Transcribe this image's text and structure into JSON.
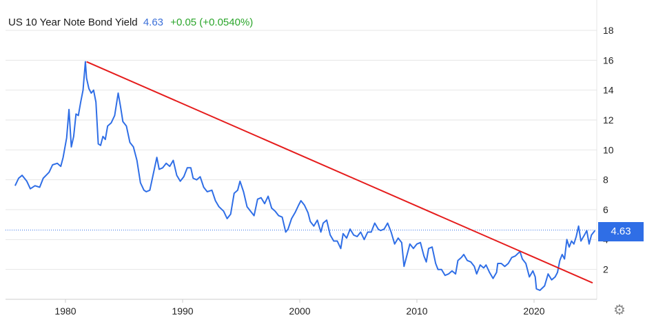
{
  "header": {
    "title": "US 10 Year Note Bond Yield",
    "price": "4.63",
    "change": "+0.05 (+0.0540%)"
  },
  "price_tag": "4.63",
  "settings_icon": "gear-icon",
  "colors": {
    "series": "#2f6ee6",
    "trendline": "#e51c1c",
    "change_positive": "#2aa52a",
    "grid": "#e6e6e6"
  },
  "chart_data": {
    "type": "line",
    "title": "US 10 Year Note Bond Yield",
    "xlabel": "",
    "ylabel": "",
    "xlim": [
      1975.7,
      2025.3
    ],
    "ylim": [
      0,
      20
    ],
    "x_ticks": [
      "1980",
      "1990",
      "2000",
      "2010",
      "2020"
    ],
    "y_ticks": [
      "2",
      "4",
      "6",
      "8",
      "10",
      "12",
      "14",
      "16",
      "18"
    ],
    "grid": "horizontal",
    "series": [
      {
        "points": [
          [
            1975.7,
            7.6
          ],
          [
            1976.0,
            8.1
          ],
          [
            1976.3,
            8.3
          ],
          [
            1976.7,
            7.9
          ],
          [
            1977.0,
            7.4
          ],
          [
            1977.4,
            7.6
          ],
          [
            1977.8,
            7.5
          ],
          [
            1978.1,
            8.1
          ],
          [
            1978.6,
            8.5
          ],
          [
            1978.9,
            9.0
          ],
          [
            1979.3,
            9.1
          ],
          [
            1979.6,
            8.9
          ],
          [
            1979.8,
            9.5
          ],
          [
            1980.1,
            10.8
          ],
          [
            1980.3,
            12.7
          ],
          [
            1980.5,
            10.2
          ],
          [
            1980.7,
            10.9
          ],
          [
            1980.9,
            12.4
          ],
          [
            1981.1,
            12.3
          ],
          [
            1981.3,
            13.2
          ],
          [
            1981.5,
            14.0
          ],
          [
            1981.7,
            15.9
          ],
          [
            1981.8,
            14.8
          ],
          [
            1982.0,
            14.1
          ],
          [
            1982.2,
            13.8
          ],
          [
            1982.4,
            14.0
          ],
          [
            1982.6,
            13.2
          ],
          [
            1982.8,
            10.4
          ],
          [
            1983.0,
            10.3
          ],
          [
            1983.2,
            10.9
          ],
          [
            1983.4,
            10.7
          ],
          [
            1983.6,
            11.6
          ],
          [
            1983.9,
            11.8
          ],
          [
            1984.2,
            12.3
          ],
          [
            1984.5,
            13.8
          ],
          [
            1984.7,
            12.9
          ],
          [
            1984.9,
            11.9
          ],
          [
            1985.2,
            11.6
          ],
          [
            1985.5,
            10.5
          ],
          [
            1985.8,
            10.2
          ],
          [
            1986.1,
            9.3
          ],
          [
            1986.4,
            7.8
          ],
          [
            1986.7,
            7.3
          ],
          [
            1986.9,
            7.2
          ],
          [
            1987.2,
            7.3
          ],
          [
            1987.5,
            8.4
          ],
          [
            1987.8,
            9.5
          ],
          [
            1988.0,
            8.7
          ],
          [
            1988.3,
            8.8
          ],
          [
            1988.6,
            9.1
          ],
          [
            1988.9,
            8.9
          ],
          [
            1989.2,
            9.3
          ],
          [
            1989.5,
            8.3
          ],
          [
            1989.8,
            7.9
          ],
          [
            1990.1,
            8.2
          ],
          [
            1990.4,
            8.8
          ],
          [
            1990.7,
            8.8
          ],
          [
            1990.9,
            8.1
          ],
          [
            1991.2,
            8.0
          ],
          [
            1991.5,
            8.2
          ],
          [
            1991.8,
            7.5
          ],
          [
            1992.1,
            7.2
          ],
          [
            1992.5,
            7.3
          ],
          [
            1992.8,
            6.6
          ],
          [
            1993.1,
            6.2
          ],
          [
            1993.5,
            5.9
          ],
          [
            1993.8,
            5.4
          ],
          [
            1994.1,
            5.7
          ],
          [
            1994.4,
            7.1
          ],
          [
            1994.7,
            7.3
          ],
          [
            1994.9,
            7.9
          ],
          [
            1995.2,
            7.2
          ],
          [
            1995.5,
            6.2
          ],
          [
            1995.8,
            5.9
          ],
          [
            1996.1,
            5.6
          ],
          [
            1996.4,
            6.7
          ],
          [
            1996.7,
            6.8
          ],
          [
            1997.0,
            6.4
          ],
          [
            1997.3,
            6.9
          ],
          [
            1997.6,
            6.1
          ],
          [
            1997.9,
            5.9
          ],
          [
            1998.2,
            5.6
          ],
          [
            1998.5,
            5.5
          ],
          [
            1998.8,
            4.5
          ],
          [
            1999.0,
            4.7
          ],
          [
            1999.3,
            5.4
          ],
          [
            1999.6,
            5.8
          ],
          [
            1999.9,
            6.3
          ],
          [
            2000.1,
            6.6
          ],
          [
            2000.4,
            6.3
          ],
          [
            2000.7,
            5.8
          ],
          [
            2000.9,
            5.2
          ],
          [
            2001.2,
            4.9
          ],
          [
            2001.5,
            5.3
          ],
          [
            2001.8,
            4.5
          ],
          [
            2002.0,
            5.1
          ],
          [
            2002.3,
            5.3
          ],
          [
            2002.6,
            4.3
          ],
          [
            2002.9,
            3.9
          ],
          [
            2003.2,
            3.9
          ],
          [
            2003.5,
            3.4
          ],
          [
            2003.7,
            4.4
          ],
          [
            2004.0,
            4.1
          ],
          [
            2004.3,
            4.7
          ],
          [
            2004.6,
            4.3
          ],
          [
            2004.9,
            4.2
          ],
          [
            2005.2,
            4.5
          ],
          [
            2005.5,
            4.0
          ],
          [
            2005.8,
            4.5
          ],
          [
            2006.1,
            4.5
          ],
          [
            2006.4,
            5.1
          ],
          [
            2006.7,
            4.7
          ],
          [
            2006.9,
            4.6
          ],
          [
            2007.2,
            4.7
          ],
          [
            2007.5,
            5.1
          ],
          [
            2007.8,
            4.5
          ],
          [
            2008.1,
            3.7
          ],
          [
            2008.4,
            4.1
          ],
          [
            2008.7,
            3.8
          ],
          [
            2008.9,
            2.2
          ],
          [
            2009.1,
            2.8
          ],
          [
            2009.4,
            3.7
          ],
          [
            2009.7,
            3.4
          ],
          [
            2010.0,
            3.7
          ],
          [
            2010.3,
            3.8
          ],
          [
            2010.6,
            2.9
          ],
          [
            2010.8,
            2.5
          ],
          [
            2011.0,
            3.4
          ],
          [
            2011.3,
            3.5
          ],
          [
            2011.6,
            2.4
          ],
          [
            2011.8,
            2.0
          ],
          [
            2012.1,
            2.0
          ],
          [
            2012.4,
            1.6
          ],
          [
            2012.7,
            1.7
          ],
          [
            2013.0,
            1.9
          ],
          [
            2013.3,
            1.7
          ],
          [
            2013.5,
            2.6
          ],
          [
            2013.8,
            2.8
          ],
          [
            2014.0,
            3.0
          ],
          [
            2014.3,
            2.6
          ],
          [
            2014.6,
            2.5
          ],
          [
            2014.9,
            2.2
          ],
          [
            2015.1,
            1.7
          ],
          [
            2015.4,
            2.3
          ],
          [
            2015.7,
            2.1
          ],
          [
            2015.9,
            2.3
          ],
          [
            2016.2,
            1.8
          ],
          [
            2016.5,
            1.4
          ],
          [
            2016.8,
            1.8
          ],
          [
            2016.9,
            2.4
          ],
          [
            2017.2,
            2.4
          ],
          [
            2017.5,
            2.2
          ],
          [
            2017.8,
            2.4
          ],
          [
            2018.1,
            2.8
          ],
          [
            2018.4,
            2.9
          ],
          [
            2018.8,
            3.2
          ],
          [
            2019.0,
            2.7
          ],
          [
            2019.3,
            2.4
          ],
          [
            2019.6,
            1.5
          ],
          [
            2019.9,
            1.9
          ],
          [
            2020.1,
            1.5
          ],
          [
            2020.2,
            0.7
          ],
          [
            2020.5,
            0.6
          ],
          [
            2020.9,
            0.9
          ],
          [
            2021.2,
            1.7
          ],
          [
            2021.5,
            1.3
          ],
          [
            2021.8,
            1.5
          ],
          [
            2022.0,
            1.8
          ],
          [
            2022.2,
            2.6
          ],
          [
            2022.4,
            3.0
          ],
          [
            2022.6,
            2.7
          ],
          [
            2022.8,
            4.0
          ],
          [
            2023.0,
            3.5
          ],
          [
            2023.2,
            3.9
          ],
          [
            2023.4,
            3.7
          ],
          [
            2023.6,
            4.2
          ],
          [
            2023.8,
            4.9
          ],
          [
            2024.0,
            3.9
          ],
          [
            2024.3,
            4.3
          ],
          [
            2024.5,
            4.6
          ],
          [
            2024.7,
            3.7
          ],
          [
            2024.9,
            4.3
          ],
          [
            2025.2,
            4.6
          ]
        ]
      }
    ],
    "trendline": {
      "from": [
        1981.8,
        15.9
      ],
      "to": [
        2025.0,
        1.1
      ]
    },
    "current_value": 4.63
  }
}
